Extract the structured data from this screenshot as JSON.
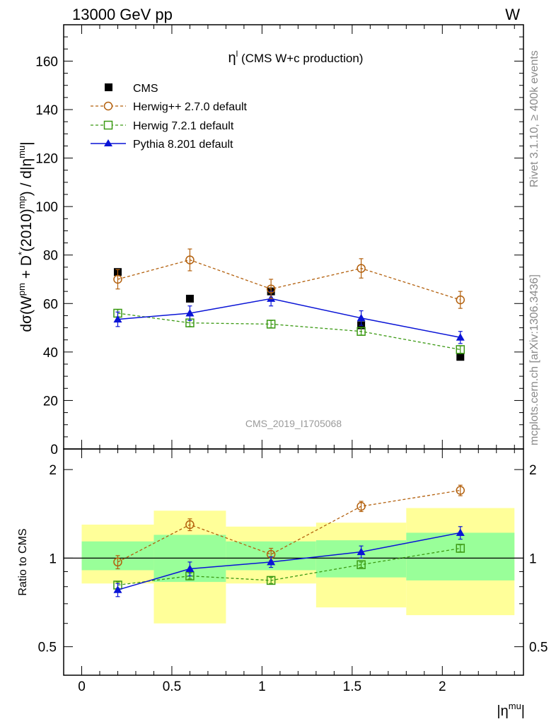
{
  "header": {
    "left": "13000 GeV pp",
    "right": "W"
  },
  "side_labels": {
    "top": "Rivet 3.1.10, ≥ 400k events",
    "bottom": "mcplots.cern.ch [arXiv:1306.3436]"
  },
  "watermark": "CMS_2019_I1705068",
  "colors": {
    "cms": "#000000",
    "herwigpp": "#b3600d",
    "herwig7": "#3c9a14",
    "pythia": "#0a14d6",
    "band_outer": "#ffff99",
    "band_inner": "#99ff99"
  },
  "chart_data": [
    {
      "type": "scatter",
      "title_main": "η",
      "title_sup": "l",
      "title_rest": " (CMS W+c production)",
      "ylabel": {
        "p1": "dσ(W",
        "s1": "pm",
        "p2": " + D",
        "s2": "*",
        "p3": "(2010)",
        "s3": "mp",
        "p4": ") / d|η",
        "s4": "mu",
        "p5": "|"
      },
      "xlim": [
        -0.1,
        2.45
      ],
      "ylim": [
        0,
        175
      ],
      "ytick_values": [
        0,
        20,
        40,
        60,
        80,
        100,
        120,
        140,
        160
      ],
      "ytick_labels": [
        "0",
        "20",
        "40",
        "60",
        "80",
        "100",
        "120",
        "140",
        "160"
      ],
      "legend_position": "top-left",
      "series": [
        {
          "name": "CMS",
          "key": "cms",
          "marker": "filled-square",
          "x": [
            0.2,
            0.6,
            1.05,
            1.55,
            2.1
          ],
          "y": [
            73,
            62,
            65,
            51,
            38
          ]
        },
        {
          "name": "Herwig++ 2.7.0 default",
          "key": "herwigpp",
          "marker": "open-circle",
          "dashed": true,
          "x": [
            0.2,
            0.6,
            1.05,
            1.55,
            2.1
          ],
          "y": [
            70,
            78,
            66,
            74.5,
            61.5
          ],
          "err": [
            4,
            4.5,
            4,
            4,
            3.5
          ]
        },
        {
          "name": "Herwig 7.2.1 default",
          "key": "herwig7",
          "marker": "open-square",
          "dashed": true,
          "x": [
            0.2,
            0.6,
            1.05,
            1.55,
            2.1
          ],
          "y": [
            56,
            52,
            51.5,
            48.5,
            41
          ],
          "err": [
            1.5,
            1.5,
            1.5,
            1.5,
            1.5
          ]
        },
        {
          "name": "Pythia 8.201 default",
          "key": "pythia",
          "marker": "filled-triangle",
          "dashed": false,
          "x": [
            0.2,
            0.6,
            1.05,
            1.55,
            2.1
          ],
          "y": [
            53.5,
            56,
            62,
            54,
            46
          ],
          "err": [
            3,
            3,
            3,
            3,
            2.5
          ]
        }
      ]
    },
    {
      "type": "scatter",
      "ylabel": "Ratio to CMS",
      "xlabel_main": "|η",
      "xlabel_sup": "mu",
      "xlabel_end": "|",
      "scale": "log",
      "ylim": [
        0.4,
        2.35
      ],
      "xlim": [
        -0.1,
        2.45
      ],
      "ytick_values": [
        0.5,
        1,
        2
      ],
      "ytick_labels": [
        "0.5",
        "1",
        "2"
      ],
      "xtick_values": [
        0,
        0.5,
        1,
        1.5,
        2
      ],
      "xtick_labels": [
        "0",
        "0.5",
        "1",
        "1.5",
        "2"
      ],
      "reference_line": 1,
      "bins": [
        {
          "x0": 0.0,
          "x1": 0.4,
          "outer": [
            0.82,
            1.3
          ],
          "inner": [
            0.91,
            1.14
          ]
        },
        {
          "x0": 0.4,
          "x1": 0.8,
          "outer": [
            0.6,
            1.45
          ],
          "inner": [
            0.83,
            1.2
          ]
        },
        {
          "x0": 0.8,
          "x1": 1.3,
          "outer": [
            0.82,
            1.28
          ],
          "inner": [
            0.91,
            1.14
          ]
        },
        {
          "x0": 1.3,
          "x1": 1.8,
          "outer": [
            0.68,
            1.32
          ],
          "inner": [
            0.86,
            1.15
          ]
        },
        {
          "x0": 1.8,
          "x1": 2.4,
          "outer": [
            0.64,
            1.48
          ],
          "inner": [
            0.84,
            1.22
          ]
        }
      ],
      "series": [
        {
          "name": "Herwig++ 2.7.0 default",
          "key": "herwigpp",
          "marker": "open-circle",
          "dashed": true,
          "x": [
            0.2,
            0.6,
            1.05,
            1.55,
            2.1
          ],
          "y": [
            0.97,
            1.3,
            1.03,
            1.5,
            1.7
          ],
          "err": [
            0.05,
            0.06,
            0.05,
            0.06,
            0.07
          ]
        },
        {
          "name": "Herwig 7.2.1 default",
          "key": "herwig7",
          "marker": "open-square",
          "dashed": true,
          "x": [
            0.2,
            0.6,
            1.05,
            1.55,
            2.1
          ],
          "y": [
            0.81,
            0.87,
            0.84,
            0.95,
            1.08
          ],
          "err": [
            0.02,
            0.02,
            0.02,
            0.02,
            0.03
          ]
        },
        {
          "name": "Pythia 8.201 default",
          "key": "pythia",
          "marker": "filled-triangle",
          "dashed": false,
          "x": [
            0.2,
            0.6,
            1.05,
            1.55,
            2.1
          ],
          "y": [
            0.78,
            0.92,
            0.97,
            1.05,
            1.22
          ],
          "err": [
            0.04,
            0.05,
            0.04,
            0.05,
            0.06
          ]
        }
      ]
    }
  ]
}
